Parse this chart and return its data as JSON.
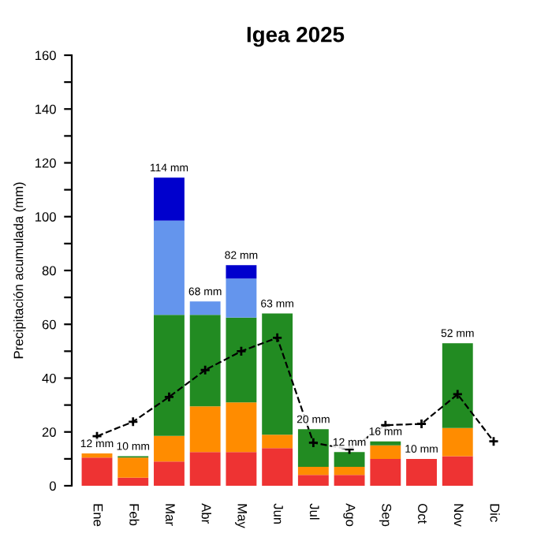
{
  "chart_data": {
    "type": "bar",
    "title": "Igea 2025",
    "ylabel": "Precipitación acumulada (mm)",
    "categories": [
      "Ene",
      "Feb",
      "Mar",
      "Abr",
      "May",
      "Jun",
      "Jul",
      "Ago",
      "Sep",
      "Oct",
      "Nov",
      "Dic"
    ],
    "stacked": true,
    "series": [
      {
        "color": "#ee3333",
        "values": [
          10.5,
          3,
          9,
          12.5,
          12.5,
          14,
          4,
          4,
          10,
          10,
          11,
          null
        ]
      },
      {
        "color": "#ff8c00",
        "values": [
          1.5,
          7.5,
          9.5,
          17,
          18.5,
          5,
          3,
          3,
          5,
          null,
          10.5,
          null
        ]
      },
      {
        "color": "#228b22",
        "values": [
          null,
          0.5,
          45,
          34,
          31.5,
          45,
          14,
          5.5,
          1.5,
          null,
          31.5,
          null
        ]
      },
      {
        "color": "#6495ed",
        "values": [
          null,
          null,
          35,
          5,
          14.5,
          null,
          null,
          null,
          null,
          null,
          null,
          null
        ]
      },
      {
        "color": "#0000cd",
        "values": [
          null,
          null,
          16,
          null,
          5,
          null,
          null,
          null,
          null,
          null,
          null,
          null
        ]
      },
      {
        "type": "line",
        "color": "#000000",
        "line_style": "dashed",
        "marker": "cross",
        "values": [
          18.4,
          23.8,
          33,
          43,
          50,
          55,
          16,
          13.5,
          22.5,
          23,
          34,
          16.5
        ]
      }
    ],
    "totals": [
      "12 mm",
      "10 mm",
      "114 mm",
      "68 mm",
      "82 mm",
      "63 mm",
      "20 mm",
      "12 mm",
      "16 mm",
      "10 mm",
      "52 mm",
      null
    ],
    "ylim": [
      0,
      160
    ],
    "yticks": [
      0,
      {
        "value": 10,
        "label": null
      },
      20,
      {
        "value": 30,
        "label": null
      },
      40,
      {
        "value": 50,
        "label": null
      },
      60,
      {
        "value": 70,
        "label": null
      },
      80,
      {
        "value": 90,
        "label": null
      },
      100,
      {
        "value": 110,
        "label": null
      },
      120,
      {
        "value": 130,
        "label": null
      },
      140,
      {
        "value": 150,
        "label": null
      },
      160
    ],
    "grid": false,
    "legend": false
  }
}
